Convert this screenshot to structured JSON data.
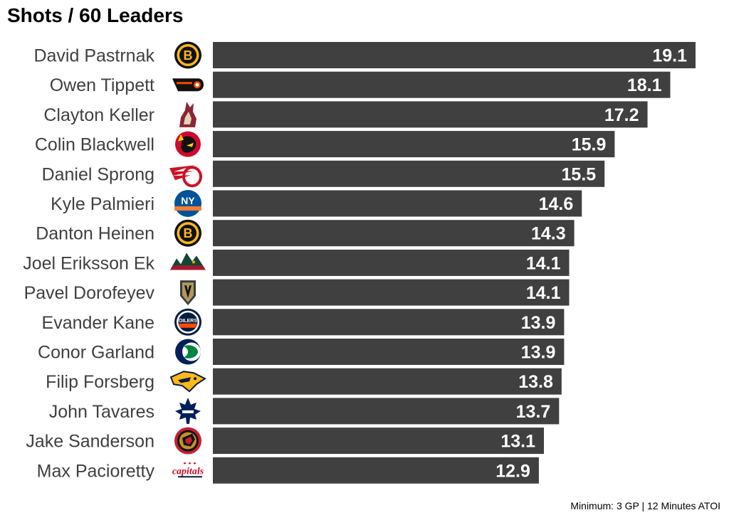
{
  "chart_data": {
    "type": "bar",
    "orientation": "horizontal",
    "title": "Shots / 60 Leaders",
    "caption": "Minimum: 3 GP | 12 Minutes ATOI",
    "categories": [
      "David Pastrnak",
      "Owen Tippett",
      "Clayton Keller",
      "Colin Blackwell",
      "Daniel Sprong",
      "Kyle Palmieri",
      "Danton Heinen",
      "Joel Eriksson Ek",
      "Pavel Dorofeyev",
      "Evander Kane",
      "Conor Garland",
      "Filip Forsberg",
      "John Tavares",
      "Jake Sanderson",
      "Max Pacioretty"
    ],
    "values": [
      19.1,
      18.1,
      17.2,
      15.9,
      15.5,
      14.6,
      14.3,
      14.1,
      14.1,
      13.9,
      13.9,
      13.8,
      13.7,
      13.1,
      12.9
    ],
    "value_labels": [
      "19.1",
      "18.1",
      "17.2",
      "15.9",
      "15.5",
      "14.6",
      "14.3",
      "14.1",
      "14.1",
      "13.9",
      "13.9",
      "13.8",
      "13.7",
      "13.1",
      "12.9"
    ],
    "team_logos": [
      "boston-bruins-logo-icon",
      "philadelphia-flyers-logo-icon",
      "arizona-coyotes-logo-icon",
      "chicago-blackhawks-logo-icon",
      "detroit-red-wings-logo-icon",
      "new-york-islanders-logo-icon",
      "boston-bruins-logo-icon",
      "minnesota-wild-logo-icon",
      "vegas-golden-knights-logo-icon",
      "edmonton-oilers-logo-icon",
      "vancouver-canucks-logo-icon",
      "nashville-predators-logo-icon",
      "toronto-maple-leafs-logo-icon",
      "ottawa-senators-logo-icon",
      "washington-capitals-logo-icon"
    ],
    "logo_text": {
      "boston-bruins-logo-icon": "B",
      "new-york-islanders-logo-icon": "NY",
      "edmonton-oilers-logo-icon": "OILERS",
      "washington-capitals-logo-icon": "capitals"
    },
    "xlim": [
      0,
      19.1
    ],
    "grid": false,
    "legend": "none",
    "bar_color": "#404040",
    "value_label_color": "#ffffff",
    "category_label_color": "#404040"
  }
}
